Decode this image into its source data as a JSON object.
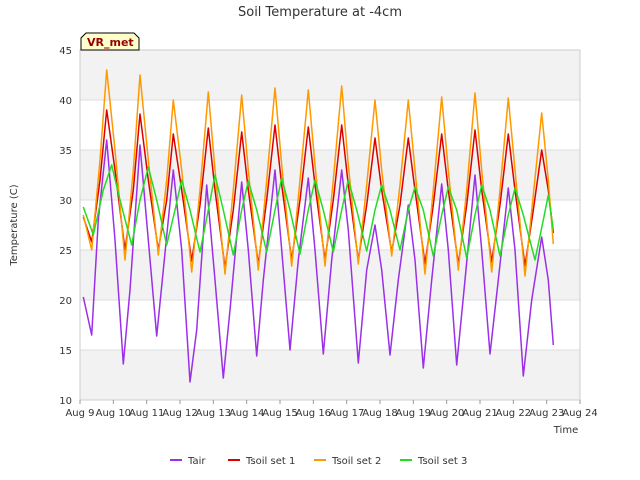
{
  "chart_data": {
    "type": "line",
    "title": "Soil Temperature at -4cm",
    "xlabel": "Time",
    "ylabel": "Temperature (C)",
    "badge": "VR_met",
    "ylim": [
      10,
      45
    ],
    "yticks": [
      10,
      15,
      20,
      25,
      30,
      35,
      40,
      45
    ],
    "xlim": [
      9,
      24
    ],
    "xticks": [
      {
        "value": 9,
        "label": "Aug 9"
      },
      {
        "value": 10,
        "label": "Aug 10"
      },
      {
        "value": 11,
        "label": "Aug 11"
      },
      {
        "value": 12,
        "label": "Aug 12"
      },
      {
        "value": 13,
        "label": "Aug 13"
      },
      {
        "value": 14,
        "label": "Aug 14"
      },
      {
        "value": 15,
        "label": "Aug 15"
      },
      {
        "value": 16,
        "label": "Aug 16"
      },
      {
        "value": 17,
        "label": "Aug 17"
      },
      {
        "value": 18,
        "label": "Aug 18"
      },
      {
        "value": 19,
        "label": "Aug 19"
      },
      {
        "value": 20,
        "label": "Aug 20"
      },
      {
        "value": 21,
        "label": "Aug 21"
      },
      {
        "value": 22,
        "label": "Aug 22"
      },
      {
        "value": 23,
        "label": "Aug 23"
      },
      {
        "value": 24,
        "label": "Aug 24"
      }
    ],
    "band_color": "#f2f2f2",
    "legend_position": "bottom-center",
    "series": [
      {
        "name": "Tair",
        "color": "#9b30e8",
        "points": [
          [
            9.1,
            20.3
          ],
          [
            9.35,
            16.5
          ],
          [
            9.55,
            28
          ],
          [
            9.8,
            36
          ],
          [
            10.05,
            26
          ],
          [
            10.3,
            13.6
          ],
          [
            10.5,
            21
          ],
          [
            10.8,
            35.5
          ],
          [
            11.05,
            26
          ],
          [
            11.3,
            16.4
          ],
          [
            11.5,
            23
          ],
          [
            11.8,
            33
          ],
          [
            12.05,
            25
          ],
          [
            12.3,
            11.8
          ],
          [
            12.5,
            17
          ],
          [
            12.8,
            31.5
          ],
          [
            13.05,
            22
          ],
          [
            13.3,
            12.2
          ],
          [
            13.5,
            19
          ],
          [
            13.85,
            31.8
          ],
          [
            14.05,
            25
          ],
          [
            14.3,
            14.4
          ],
          [
            14.5,
            22
          ],
          [
            14.85,
            33
          ],
          [
            15.05,
            25
          ],
          [
            15.3,
            15
          ],
          [
            15.55,
            24
          ],
          [
            15.85,
            32.2
          ],
          [
            16.05,
            25
          ],
          [
            16.3,
            14.6
          ],
          [
            16.55,
            24
          ],
          [
            16.85,
            33
          ],
          [
            17.05,
            27
          ],
          [
            17.35,
            13.7
          ],
          [
            17.6,
            23
          ],
          [
            17.85,
            27.5
          ],
          [
            18.05,
            23
          ],
          [
            18.3,
            14.5
          ],
          [
            18.55,
            22
          ],
          [
            18.85,
            29.5
          ],
          [
            19.05,
            24
          ],
          [
            19.3,
            13.2
          ],
          [
            19.55,
            22
          ],
          [
            19.85,
            31.6
          ],
          [
            20.05,
            25
          ],
          [
            20.3,
            13.5
          ],
          [
            20.55,
            22
          ],
          [
            20.85,
            32.5
          ],
          [
            21.05,
            25
          ],
          [
            21.3,
            14.6
          ],
          [
            21.55,
            22
          ],
          [
            21.85,
            31.2
          ],
          [
            22.05,
            25
          ],
          [
            22.3,
            12.4
          ],
          [
            22.55,
            20
          ],
          [
            22.85,
            26.3
          ],
          [
            23.05,
            22
          ],
          [
            23.2,
            15.5
          ]
        ]
      },
      {
        "name": "Tsoil set 1",
        "color": "#dd0000",
        "points": [
          [
            9.1,
            28.3
          ],
          [
            9.35,
            25.8
          ],
          [
            9.6,
            32
          ],
          [
            9.8,
            39
          ],
          [
            10.05,
            33
          ],
          [
            10.35,
            25
          ],
          [
            10.6,
            31
          ],
          [
            10.8,
            38.6
          ],
          [
            11.05,
            32
          ],
          [
            11.35,
            25
          ],
          [
            11.6,
            30
          ],
          [
            11.8,
            36.6
          ],
          [
            12.05,
            31
          ],
          [
            12.35,
            23.9
          ],
          [
            12.6,
            29.5
          ],
          [
            12.85,
            37.2
          ],
          [
            13.05,
            31
          ],
          [
            13.35,
            23.2
          ],
          [
            13.6,
            29
          ],
          [
            13.85,
            36.8
          ],
          [
            14.05,
            31
          ],
          [
            14.35,
            23.6
          ],
          [
            14.6,
            30
          ],
          [
            14.85,
            37.5
          ],
          [
            15.05,
            31.5
          ],
          [
            15.35,
            24
          ],
          [
            15.6,
            30
          ],
          [
            15.85,
            37.3
          ],
          [
            16.05,
            31.5
          ],
          [
            16.35,
            24
          ],
          [
            16.6,
            30
          ],
          [
            16.85,
            37.5
          ],
          [
            17.05,
            31.5
          ],
          [
            17.35,
            24
          ],
          [
            17.6,
            29.5
          ],
          [
            17.85,
            36.2
          ],
          [
            18.05,
            31
          ],
          [
            18.35,
            24.8
          ],
          [
            18.6,
            29.5
          ],
          [
            18.85,
            36.2
          ],
          [
            19.05,
            31
          ],
          [
            19.35,
            23.6
          ],
          [
            19.6,
            29.5
          ],
          [
            19.85,
            36.6
          ],
          [
            20.05,
            31
          ],
          [
            20.35,
            23.6
          ],
          [
            20.6,
            29.5
          ],
          [
            20.85,
            37
          ],
          [
            21.05,
            31
          ],
          [
            21.35,
            23.8
          ],
          [
            21.6,
            29.5
          ],
          [
            21.85,
            36.6
          ],
          [
            22.05,
            31
          ],
          [
            22.35,
            23.4
          ],
          [
            22.6,
            29
          ],
          [
            22.85,
            35
          ],
          [
            23.05,
            31
          ],
          [
            23.2,
            26.7
          ]
        ]
      },
      {
        "name": "Tsoil set 2",
        "color": "#ff9900",
        "points": [
          [
            9.1,
            28.5
          ],
          [
            9.35,
            25
          ],
          [
            9.6,
            34
          ],
          [
            9.8,
            43
          ],
          [
            10.05,
            35
          ],
          [
            10.35,
            24
          ],
          [
            10.6,
            33
          ],
          [
            10.8,
            42.5
          ],
          [
            11.05,
            34
          ],
          [
            11.35,
            24.5
          ],
          [
            11.6,
            32
          ],
          [
            11.8,
            40
          ],
          [
            12.05,
            33
          ],
          [
            12.35,
            22.8
          ],
          [
            12.6,
            31
          ],
          [
            12.85,
            40.8
          ],
          [
            13.05,
            33
          ],
          [
            13.35,
            22.6
          ],
          [
            13.6,
            31
          ],
          [
            13.85,
            40.5
          ],
          [
            14.05,
            33
          ],
          [
            14.35,
            23
          ],
          [
            14.6,
            32
          ],
          [
            14.85,
            41.2
          ],
          [
            15.05,
            33.5
          ],
          [
            15.35,
            23.4
          ],
          [
            15.6,
            32
          ],
          [
            15.85,
            41
          ],
          [
            16.05,
            33.5
          ],
          [
            16.35,
            23.4
          ],
          [
            16.6,
            32
          ],
          [
            16.85,
            41.4
          ],
          [
            17.05,
            33.5
          ],
          [
            17.35,
            23.6
          ],
          [
            17.6,
            31.5
          ],
          [
            17.85,
            40
          ],
          [
            18.05,
            33
          ],
          [
            18.35,
            24.4
          ],
          [
            18.6,
            31.5
          ],
          [
            18.85,
            40
          ],
          [
            19.05,
            33
          ],
          [
            19.35,
            22.6
          ],
          [
            19.6,
            31
          ],
          [
            19.85,
            40.3
          ],
          [
            20.05,
            33
          ],
          [
            20.35,
            23
          ],
          [
            20.6,
            31
          ],
          [
            20.85,
            40.7
          ],
          [
            21.05,
            33
          ],
          [
            21.35,
            22.8
          ],
          [
            21.6,
            31
          ],
          [
            21.85,
            40.2
          ],
          [
            22.05,
            33
          ],
          [
            22.35,
            22.4
          ],
          [
            22.6,
            30.5
          ],
          [
            22.85,
            38.7
          ],
          [
            23.05,
            32
          ],
          [
            23.2,
            25.6
          ]
        ]
      },
      {
        "name": "Tsoil set 3",
        "color": "#22dd22",
        "points": [
          [
            9.1,
            29.3
          ],
          [
            9.4,
            26.5
          ],
          [
            9.7,
            31
          ],
          [
            9.95,
            33.5
          ],
          [
            10.2,
            30
          ],
          [
            10.55,
            25.5
          ],
          [
            10.8,
            30
          ],
          [
            11.05,
            33.3
          ],
          [
            11.3,
            30
          ],
          [
            11.6,
            25.5
          ],
          [
            11.85,
            29
          ],
          [
            12.05,
            32
          ],
          [
            12.3,
            29
          ],
          [
            12.6,
            24.8
          ],
          [
            12.85,
            29
          ],
          [
            13.05,
            32.5
          ],
          [
            13.3,
            29
          ],
          [
            13.6,
            24.5
          ],
          [
            13.85,
            29
          ],
          [
            14.05,
            31.9
          ],
          [
            14.3,
            29
          ],
          [
            14.6,
            24.8
          ],
          [
            14.85,
            29
          ],
          [
            15.05,
            32.2
          ],
          [
            15.3,
            29
          ],
          [
            15.6,
            24.6
          ],
          [
            15.85,
            29
          ],
          [
            16.05,
            32
          ],
          [
            16.3,
            29
          ],
          [
            16.6,
            24.8
          ],
          [
            16.85,
            29
          ],
          [
            17.05,
            32
          ],
          [
            17.3,
            29
          ],
          [
            17.6,
            24.9
          ],
          [
            17.85,
            29
          ],
          [
            18.05,
            31.5
          ],
          [
            18.3,
            29
          ],
          [
            18.6,
            25
          ],
          [
            18.85,
            29
          ],
          [
            19.05,
            31.3
          ],
          [
            19.3,
            29
          ],
          [
            19.6,
            24.4
          ],
          [
            19.85,
            28.5
          ],
          [
            20.05,
            31.3
          ],
          [
            20.3,
            29
          ],
          [
            20.6,
            24.2
          ],
          [
            20.85,
            28.5
          ],
          [
            21.05,
            31.5
          ],
          [
            21.3,
            29
          ],
          [
            21.6,
            24.4
          ],
          [
            21.85,
            28.5
          ],
          [
            22.05,
            31.2
          ],
          [
            22.3,
            28.5
          ],
          [
            22.65,
            24
          ],
          [
            22.9,
            28
          ],
          [
            23.05,
            30.5
          ],
          [
            23.2,
            27
          ]
        ]
      }
    ]
  }
}
